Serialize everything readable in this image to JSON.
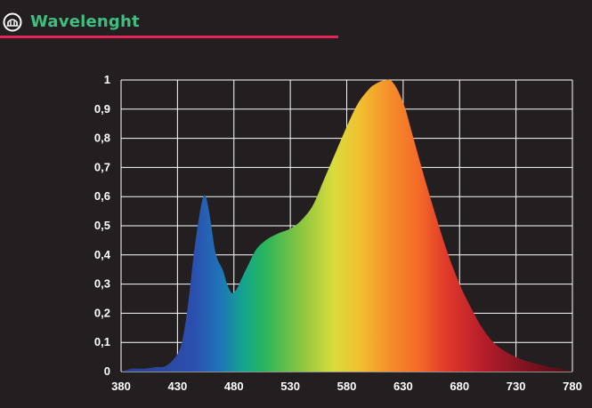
{
  "header": {
    "title": "Wavelenght",
    "logo_icon": "grow-light-logo-icon",
    "accent_color": "#e5255a",
    "title_color": "#3fbf7f"
  },
  "chart_data": {
    "type": "area",
    "title": "Wavelenght",
    "xlabel": "",
    "ylabel": "",
    "xlim": [
      380,
      780
    ],
    "ylim": [
      0,
      1
    ],
    "grid": true,
    "legend": "none",
    "x_ticks": [
      "380",
      "430",
      "480",
      "530",
      "580",
      "630",
      "680",
      "730",
      "780"
    ],
    "y_ticks": [
      "0",
      "0,1",
      "0,2",
      "0,3",
      "0,4",
      "0,5",
      "0,6",
      "0,7",
      "0,8",
      "0,9",
      "1"
    ],
    "series": [
      {
        "x": [
          380,
          390,
          400,
          410,
          420,
          430,
          435,
          440,
          445,
          450,
          453,
          455,
          457,
          460,
          463,
          466,
          470,
          474,
          478,
          482,
          487,
          492,
          500,
          510,
          520,
          530,
          540,
          550,
          560,
          570,
          580,
          590,
          600,
          605,
          610,
          615,
          618,
          620,
          623,
          627,
          632,
          637,
          642,
          650,
          660,
          670,
          680,
          690,
          700,
          710,
          720,
          730,
          740,
          750,
          760,
          770,
          780
        ],
        "y": [
          0,
          0.01,
          0.01,
          0.015,
          0.02,
          0.06,
          0.12,
          0.25,
          0.42,
          0.55,
          0.6,
          0.6,
          0.57,
          0.5,
          0.42,
          0.38,
          0.35,
          0.3,
          0.27,
          0.28,
          0.32,
          0.36,
          0.42,
          0.455,
          0.475,
          0.49,
          0.52,
          0.57,
          0.66,
          0.75,
          0.84,
          0.92,
          0.97,
          0.985,
          0.995,
          1.0,
          1.0,
          0.995,
          0.98,
          0.95,
          0.9,
          0.83,
          0.76,
          0.65,
          0.52,
          0.4,
          0.3,
          0.22,
          0.15,
          0.1,
          0.07,
          0.05,
          0.035,
          0.025,
          0.015,
          0.01,
          0.0
        ]
      }
    ]
  }
}
